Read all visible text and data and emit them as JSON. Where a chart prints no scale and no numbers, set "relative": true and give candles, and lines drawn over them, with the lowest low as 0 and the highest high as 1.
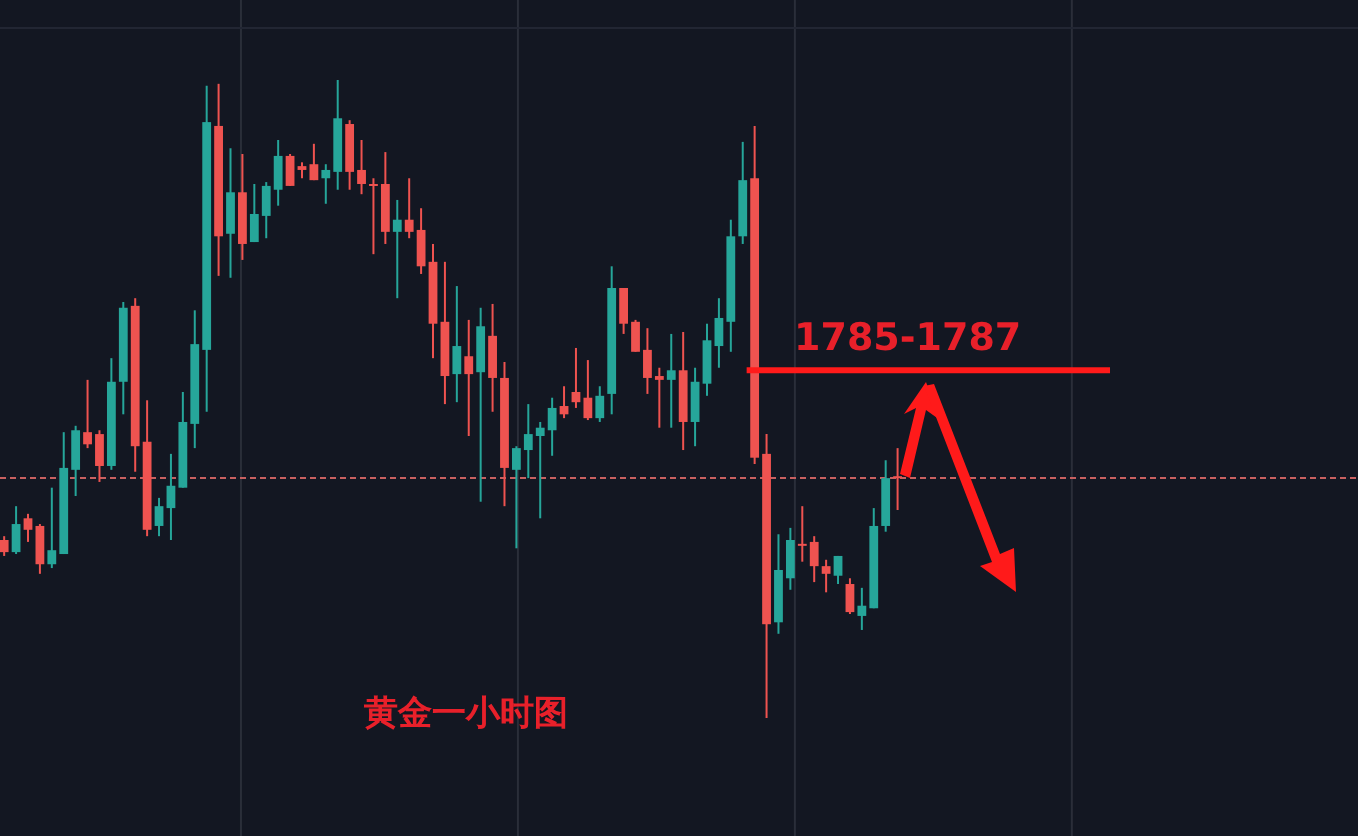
{
  "chart_data": {
    "type": "candlestick",
    "relative": true,
    "categories": [
      null,
      null,
      null,
      null,
      null,
      null,
      null,
      null,
      null,
      null,
      null,
      null,
      null,
      null,
      null,
      null,
      null,
      null,
      null,
      null,
      null,
      null,
      null,
      null,
      null,
      null,
      null,
      null,
      null,
      null,
      null,
      null,
      null,
      null,
      null,
      null,
      null,
      null,
      null,
      null,
      null,
      null,
      null,
      null,
      null,
      null,
      null,
      null,
      null,
      null,
      null,
      null,
      null,
      null,
      null,
      null,
      null,
      null,
      null,
      null,
      null,
      null,
      null,
      null,
      null,
      null,
      null,
      null,
      null,
      null,
      null,
      null,
      null,
      null,
      null,
      null
    ],
    "ohlc": [
      [
        0.279,
        0.285,
        0.254,
        0.26
      ],
      [
        0.26,
        0.332,
        0.257,
        0.304
      ],
      [
        0.313,
        0.32,
        0.276,
        0.295
      ],
      [
        0.301,
        0.304,
        0.226,
        0.241
      ],
      [
        0.241,
        0.361,
        0.235,
        0.263
      ],
      [
        0.257,
        0.448,
        0.257,
        0.392
      ],
      [
        0.389,
        0.458,
        0.348,
        0.451
      ],
      [
        0.448,
        0.53,
        0.423,
        0.429
      ],
      [
        0.445,
        0.451,
        0.37,
        0.395
      ],
      [
        0.395,
        0.564,
        0.389,
        0.527
      ],
      [
        0.527,
        0.652,
        0.476,
        0.643
      ],
      [
        0.646,
        0.658,
        0.386,
        0.426
      ],
      [
        0.433,
        0.498,
        0.285,
        0.295
      ],
      [
        0.301,
        0.345,
        0.285,
        0.332
      ],
      [
        0.329,
        0.414,
        0.279,
        0.364
      ],
      [
        0.361,
        0.511,
        0.361,
        0.464
      ],
      [
        0.461,
        0.639,
        0.423,
        0.586
      ],
      [
        0.577,
        0.991,
        0.48,
        0.934
      ],
      [
        0.928,
        0.994,
        0.693,
        0.755
      ],
      [
        0.759,
        0.893,
        0.69,
        0.824
      ],
      [
        0.824,
        0.884,
        0.718,
        0.743
      ],
      [
        0.746,
        0.837,
        0.746,
        0.79
      ],
      [
        0.787,
        0.84,
        0.752,
        0.834
      ],
      [
        0.828,
        0.906,
        0.803,
        0.881
      ],
      [
        0.881,
        0.884,
        0.834,
        0.834
      ],
      [
        0.865,
        0.871,
        0.846,
        0.859
      ],
      [
        0.868,
        0.9,
        0.843,
        0.843
      ],
      [
        0.846,
        0.868,
        0.806,
        0.859
      ],
      [
        0.856,
        1,
        0.828,
        0.94
      ],
      [
        0.931,
        0.937,
        0.828,
        0.856
      ],
      [
        0.859,
        0.906,
        0.821,
        0.837
      ],
      [
        0.837,
        0.846,
        0.727,
        0.834
      ],
      [
        0.837,
        0.887,
        0.743,
        0.762
      ],
      [
        0.762,
        0.812,
        0.658,
        0.781
      ],
      [
        0.781,
        0.846,
        0.752,
        0.762
      ],
      [
        0.765,
        0.799,
        0.696,
        0.708
      ],
      [
        0.715,
        0.743,
        0.564,
        0.618
      ],
      [
        0.621,
        0.715,
        0.492,
        0.536
      ],
      [
        0.539,
        0.677,
        0.495,
        0.583
      ],
      [
        0.567,
        0.624,
        0.442,
        0.539
      ],
      [
        0.542,
        0.643,
        0.339,
        0.614
      ],
      [
        0.599,
        0.649,
        0.48,
        0.533
      ],
      [
        0.533,
        0.558,
        0.332,
        0.392
      ],
      [
        0.389,
        0.426,
        0.266,
        0.423
      ],
      [
        0.42,
        0.492,
        0.376,
        0.445
      ],
      [
        0.442,
        0.464,
        0.313,
        0.455
      ],
      [
        0.451,
        0.502,
        0.411,
        0.486
      ],
      [
        0.489,
        0.52,
        0.47,
        0.476
      ],
      [
        0.511,
        0.58,
        0.486,
        0.495
      ],
      [
        0.502,
        0.561,
        0.467,
        0.47
      ],
      [
        0.47,
        0.52,
        0.464,
        0.505
      ],
      [
        0.508,
        0.708,
        0.476,
        0.674
      ],
      [
        0.674,
        0.674,
        0.602,
        0.618
      ],
      [
        0.621,
        0.624,
        0.574,
        0.574
      ],
      [
        0.577,
        0.611,
        0.508,
        0.533
      ],
      [
        0.536,
        0.549,
        0.455,
        0.53
      ],
      [
        0.53,
        0.602,
        0.455,
        0.545
      ],
      [
        0.545,
        0.605,
        0.42,
        0.464
      ],
      [
        0.464,
        0.549,
        0.426,
        0.527
      ],
      [
        0.524,
        0.618,
        0.505,
        0.592
      ],
      [
        0.583,
        0.658,
        0.549,
        0.627
      ],
      [
        0.621,
        0.781,
        0.574,
        0.755
      ],
      [
        0.755,
        0.903,
        0.743,
        0.843
      ],
      [
        0.846,
        0.928,
        0.398,
        0.408
      ],
      [
        0.414,
        0.445,
        0,
        0.147
      ],
      [
        0.15,
        0.288,
        0.132,
        0.232
      ],
      [
        0.219,
        0.298,
        0.201,
        0.279
      ],
      [
        0.273,
        0.332,
        0.245,
        0.27
      ],
      [
        0.276,
        0.285,
        0.213,
        0.238
      ],
      [
        0.238,
        0.248,
        0.197,
        0.226
      ],
      [
        0.223,
        0.254,
        0.21,
        0.254
      ],
      [
        0.21,
        0.219,
        0.163,
        0.166
      ],
      [
        0.16,
        0.204,
        0.138,
        0.176
      ],
      [
        0.172,
        0.329,
        0.172,
        0.301
      ],
      [
        0.301,
        0.404,
        0.292,
        0.376
      ],
      [
        0.379,
        0.423,
        0.326,
        0.376
      ]
    ],
    "ref_lines": [
      {
        "axis": "y",
        "value": 0.545,
        "color": "#ff1a1a",
        "line_style": "solid"
      },
      {
        "axis": "y",
        "value": 0.376,
        "color": "#c86060",
        "line_style": "dashed"
      }
    ],
    "annotations": [
      {
        "text": "1785-1787",
        "y": 0.545
      },
      "黄金一小时图"
    ]
  }
}
